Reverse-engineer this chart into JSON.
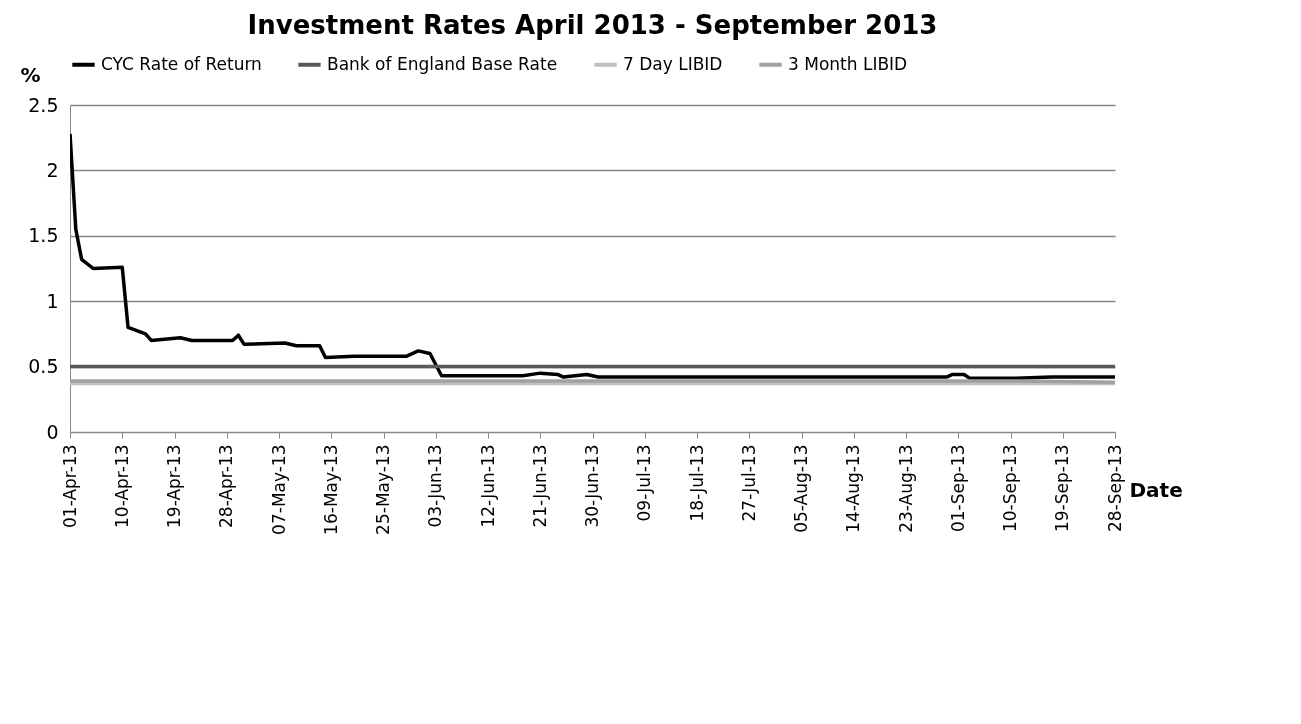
{
  "chart_data": {
    "type": "line",
    "title": "Investment Rates April 2013 - September 2013",
    "xlabel": "Date",
    "ylabel": "%",
    "xlim": [
      "2013-04-01",
      "2013-09-28"
    ],
    "xticks": [
      {
        "value": "2013-04-01",
        "label": "01-Apr-13"
      },
      {
        "value": "2013-04-10",
        "label": "10-Apr-13"
      },
      {
        "value": "2013-04-19",
        "label": "19-Apr-13"
      },
      {
        "value": "2013-04-28",
        "label": "28-Apr-13"
      },
      {
        "value": "2013-05-07",
        "label": "07-May-13"
      },
      {
        "value": "2013-05-16",
        "label": "16-May-13"
      },
      {
        "value": "2013-05-25",
        "label": "25-May-13"
      },
      {
        "value": "2013-06-03",
        "label": "03-Jun-13"
      },
      {
        "value": "2013-06-12",
        "label": "12-Jun-13"
      },
      {
        "value": "2013-06-21",
        "label": "21-Jun-13"
      },
      {
        "value": "2013-06-30",
        "label": "30-Jun-13"
      },
      {
        "value": "2013-07-09",
        "label": "09-Jul-13"
      },
      {
        "value": "2013-07-18",
        "label": "18-Jul-13"
      },
      {
        "value": "2013-07-27",
        "label": "27-Jul-13"
      },
      {
        "value": "2013-08-05",
        "label": "05-Aug-13"
      },
      {
        "value": "2013-08-14",
        "label": "14-Aug-13"
      },
      {
        "value": "2013-08-23",
        "label": "23-Aug-13"
      },
      {
        "value": "2013-09-01",
        "label": "01-Sep-13"
      },
      {
        "value": "2013-09-10",
        "label": "10-Sep-13"
      },
      {
        "value": "2013-09-19",
        "label": "19-Sep-13"
      },
      {
        "value": "2013-09-28",
        "label": "28-Sep-13"
      }
    ],
    "ylim": [
      0,
      2.5
    ],
    "yticks": [
      0,
      0.5,
      1,
      1.5,
      2,
      2.5
    ],
    "grid": "y",
    "legend": "top",
    "marker": "none",
    "line_style": "solid",
    "series": [
      {
        "name": "CYC Rate of Return",
        "color": "#000000",
        "x": [
          "2013-04-01",
          "2013-04-02",
          "2013-04-03",
          "2013-04-05",
          "2013-04-10",
          "2013-04-11",
          "2013-04-14",
          "2013-04-15",
          "2013-04-20",
          "2013-04-22",
          "2013-04-29",
          "2013-04-30",
          "2013-05-01",
          "2013-05-08",
          "2013-05-10",
          "2013-05-14",
          "2013-05-15",
          "2013-05-20",
          "2013-05-29",
          "2013-05-31",
          "2013-06-02",
          "2013-06-04",
          "2013-06-18",
          "2013-06-21",
          "2013-06-24",
          "2013-06-25",
          "2013-06-29",
          "2013-07-01",
          "2013-08-30",
          "2013-08-31",
          "2013-09-02",
          "2013-09-03",
          "2013-09-10",
          "2013-09-17",
          "2013-09-28"
        ],
        "values": [
          2.28,
          1.55,
          1.32,
          1.25,
          1.26,
          0.8,
          0.75,
          0.7,
          0.72,
          0.7,
          0.7,
          0.74,
          0.67,
          0.68,
          0.66,
          0.66,
          0.57,
          0.58,
          0.58,
          0.62,
          0.6,
          0.43,
          0.43,
          0.45,
          0.44,
          0.42,
          0.44,
          0.42,
          0.42,
          0.44,
          0.44,
          0.41,
          0.41,
          0.42,
          0.42
        ]
      },
      {
        "name": "Bank of England Base Rate",
        "color": "#595959",
        "x": [
          "2013-04-01",
          "2013-09-28"
        ],
        "values": [
          0.5,
          0.5
        ]
      },
      {
        "name": "7 Day LIBID",
        "color": "#c0c0c0",
        "x": [
          "2013-04-01",
          "2013-09-28"
        ],
        "values": [
          0.37,
          0.37
        ]
      },
      {
        "name": "3 Month LIBID",
        "color": "#a0a0a0",
        "x": [
          "2013-04-01",
          "2013-09-10",
          "2013-09-28"
        ],
        "values": [
          0.39,
          0.39,
          0.38
        ]
      }
    ]
  }
}
